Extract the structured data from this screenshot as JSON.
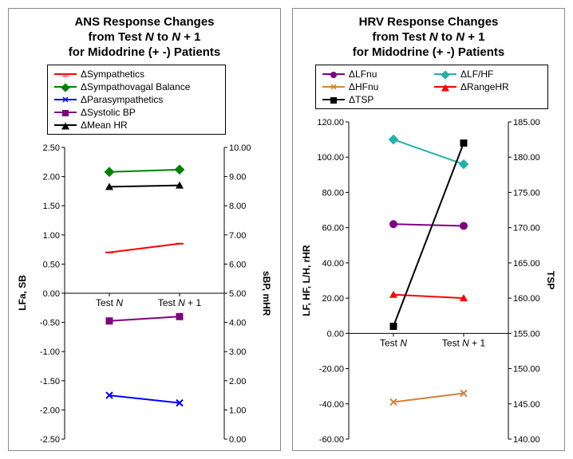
{
  "left": {
    "title_l1": "ANS Response Changes",
    "title_l2": "from Test N to N + 1",
    "title_l3": "for Midodrine (+ -) Patients",
    "ylabel_left": "LFa, SB",
    "ylabel_right": "sBP, mHR",
    "categories": [
      "Test N",
      "Test N + 1"
    ],
    "left_axis": {
      "min": -2.5,
      "max": 2.5,
      "step": 0.5,
      "decimals": 2
    },
    "right_axis": {
      "min": 0.0,
      "max": 10.0,
      "step": 1.0,
      "decimals": 2
    },
    "series": [
      {
        "name": "ΔSympathetics",
        "axis": "left",
        "color": "#ff0000",
        "marker": "dash",
        "values": [
          0.7,
          0.85
        ]
      },
      {
        "name": "ΔSympathovagal Balance",
        "axis": "left",
        "color": "#008000",
        "marker": "diamond",
        "values": [
          2.08,
          2.12
        ]
      },
      {
        "name": "ΔParasympathetics",
        "axis": "left",
        "color": "#0000ff",
        "marker": "x",
        "values": [
          -1.75,
          -1.88
        ]
      },
      {
        "name": "ΔSystolic BP",
        "axis": "right",
        "color": "#800080",
        "marker": "square",
        "values": [
          4.05,
          4.2
        ]
      },
      {
        "name": "ΔMean HR",
        "axis": "right",
        "color": "#000000",
        "marker": "triangle",
        "values": [
          8.65,
          8.7
        ]
      }
    ],
    "legend_cols": 1
  },
  "right": {
    "title_l1": "HRV Response Changes",
    "title_l2": "from Test N to N + 1",
    "title_l3": "for Midodrine (+ -) Patients",
    "ylabel_left": "LF, HF, L/H, rHR",
    "ylabel_right": "TSP",
    "categories": [
      "Test N",
      "Test N + 1"
    ],
    "left_axis": {
      "min": -60.0,
      "max": 120.0,
      "step": 20.0,
      "decimals": 2
    },
    "right_axis": {
      "min": 140.0,
      "max": 185.0,
      "step": 5.0,
      "decimals": 2
    },
    "series": [
      {
        "name": "ΔLFnu",
        "axis": "left",
        "color": "#800080",
        "marker": "circle",
        "values": [
          62.0,
          61.0
        ]
      },
      {
        "name": "ΔLF/HF",
        "axis": "left",
        "color": "#20b2aa",
        "marker": "diamond",
        "values": [
          110.0,
          96.0
        ]
      },
      {
        "name": "ΔHFnu",
        "axis": "left",
        "color": "#cd853f",
        "marker": "x",
        "values": [
          -39.0,
          -34.0
        ]
      },
      {
        "name": "ΔRangeHR",
        "axis": "left",
        "color": "#ff0000",
        "marker": "triangle",
        "values": [
          22.0,
          20.0
        ]
      },
      {
        "name": "ΔTSP",
        "axis": "right",
        "color": "#000000",
        "marker": "square",
        "values": [
          156.0,
          182.0
        ]
      }
    ],
    "legend_cols": 2
  },
  "plot_style": {
    "background": "#ffffff",
    "axis_color": "#000000",
    "tick_fontsize": 11,
    "title_fontsize": 15,
    "line_width": 2,
    "marker_size": 8
  }
}
